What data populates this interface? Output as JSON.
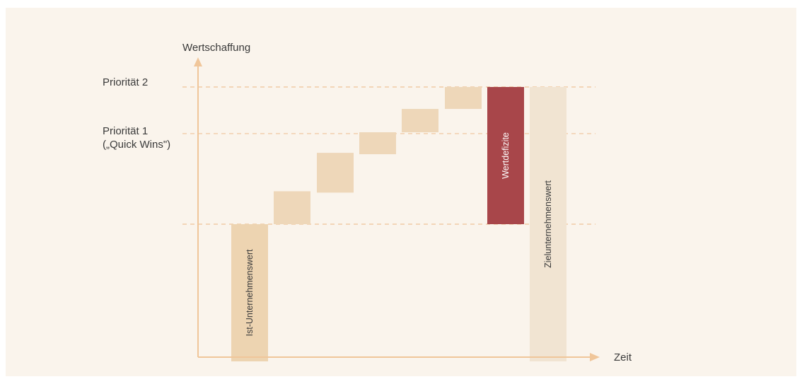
{
  "chart_data": {
    "type": "waterfall",
    "y_axis_label": "Wertschaffung",
    "x_axis_label": "Zeit",
    "reference_lines": [
      {
        "name": "Priorität 2",
        "value": 100
      },
      {
        "name": "Priorität 1\n(„Quick Wins\")",
        "value": 66
      },
      {
        "name": "",
        "value": 0
      }
    ],
    "ylim": [
      -100,
      105
    ],
    "bars": [
      {
        "category": "Ist-Unternehmenswert",
        "label": "Ist-Unternehmenswert",
        "start": -100,
        "end": 0,
        "kind": "base"
      },
      {
        "category": "step-1",
        "label": "",
        "start": 0,
        "end": 24,
        "kind": "step"
      },
      {
        "category": "step-2",
        "label": "",
        "start": 23,
        "end": 52,
        "kind": "step"
      },
      {
        "category": "step-3",
        "label": "",
        "start": 51,
        "end": 67,
        "kind": "step"
      },
      {
        "category": "step-4",
        "label": "",
        "start": 67,
        "end": 84,
        "kind": "step"
      },
      {
        "category": "step-5",
        "label": "",
        "start": 84,
        "end": 100,
        "kind": "step"
      },
      {
        "category": "Wertdefizite",
        "label": "Wertdefizite",
        "start": 0,
        "end": 100,
        "kind": "deficit"
      },
      {
        "category": "Zielunternehmenswert",
        "label": "Zielunternehmenswert",
        "start": -100,
        "end": 100,
        "kind": "target"
      }
    ]
  },
  "colors": {
    "background": "#faf4ec",
    "axis": "#f0c69a",
    "reference_line": "#efc297",
    "step": "#eed7b9",
    "base": "#edd4b1",
    "deficit": "#a8464a",
    "target": "#f1e4d2",
    "text": "#3a3a3a",
    "deficit_text": "#ffffff"
  }
}
